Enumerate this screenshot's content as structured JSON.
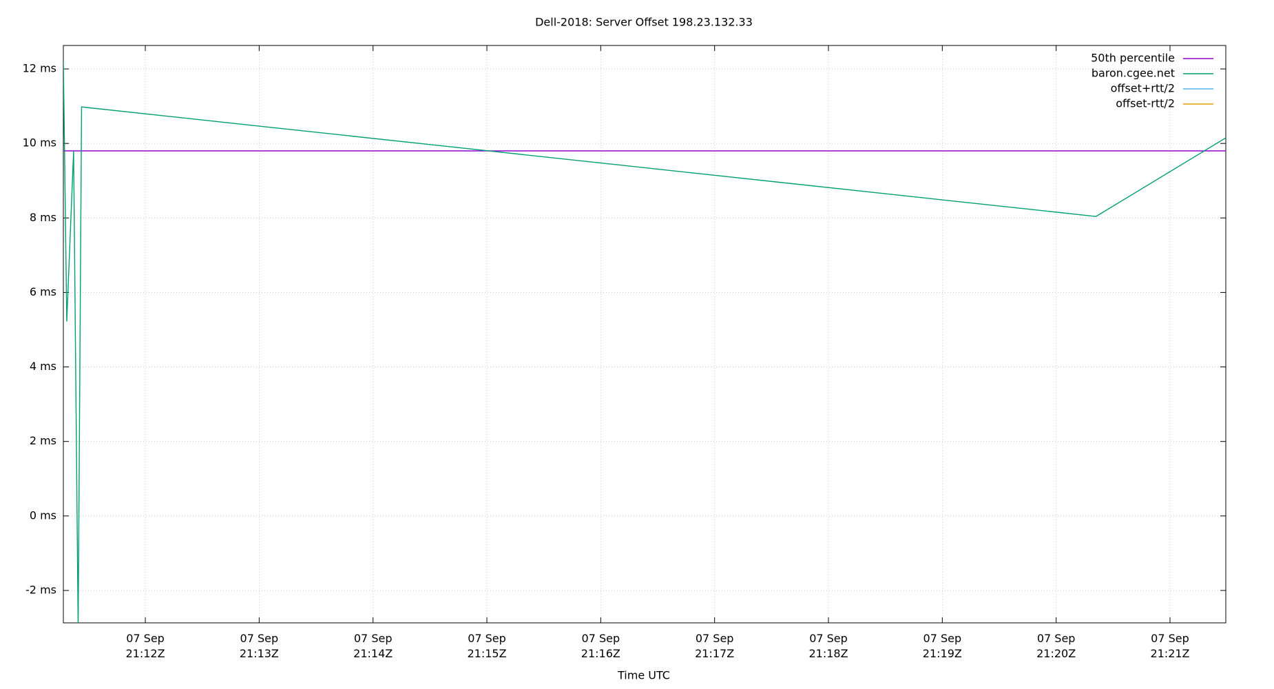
{
  "chart_data": {
    "type": "line",
    "title": "Dell-2018: Server Offset 198.23.132.33",
    "x_label": "Time UTC",
    "x": [
      11.28,
      11.31,
      11.37,
      11.41,
      11.44,
      20.35,
      21.49
    ],
    "series": [
      {
        "name": "50th percentile",
        "color": "#9400d3",
        "values": [
          9.8,
          9.8,
          9.8,
          9.8,
          9.8,
          9.8,
          9.8
        ]
      },
      {
        "name": "baron.cgee.net",
        "color": "#009e73",
        "values": [
          12.2,
          5.22,
          9.8,
          -3.0,
          10.98,
          8.04,
          10.15
        ]
      },
      {
        "name": "offset+rtt/2",
        "color": "#56b4e9",
        "values": [
          null,
          null,
          null,
          null,
          null,
          null,
          null
        ]
      },
      {
        "name": "offset-rtt/2",
        "color": "#e69f00",
        "values": [
          null,
          null,
          null,
          null,
          null,
          null,
          null
        ]
      }
    ],
    "xlim": [
      11.28,
      21.49
    ],
    "xticks": [
      {
        "value": 12,
        "label": "07 Sep\n21:12Z"
      },
      {
        "value": 13,
        "label": "07 Sep\n21:13Z"
      },
      {
        "value": 14,
        "label": "07 Sep\n21:14Z"
      },
      {
        "value": 15,
        "label": "07 Sep\n21:15Z"
      },
      {
        "value": 16,
        "label": "07 Sep\n21:16Z"
      },
      {
        "value": 17,
        "label": "07 Sep\n21:17Z"
      },
      {
        "value": 18,
        "label": "07 Sep\n21:18Z"
      },
      {
        "value": 19,
        "label": "07 Sep\n21:19Z"
      },
      {
        "value": 20,
        "label": "07 Sep\n21:20Z"
      },
      {
        "value": 21,
        "label": "07 Sep\n21:21Z"
      }
    ],
    "ylim": [
      -2.87,
      12.63
    ],
    "yticks": [
      {
        "value": -2,
        "label": "-2 ms"
      },
      {
        "value": 0,
        "label": "0 ms"
      },
      {
        "value": 2,
        "label": "2 ms"
      },
      {
        "value": 4,
        "label": "4 ms"
      },
      {
        "value": 6,
        "label": "6 ms"
      },
      {
        "value": 8,
        "label": "8 ms"
      },
      {
        "value": 10,
        "label": "10 ms"
      },
      {
        "value": 12,
        "label": "12 ms"
      }
    ],
    "grid": true,
    "legend": "top-right"
  }
}
